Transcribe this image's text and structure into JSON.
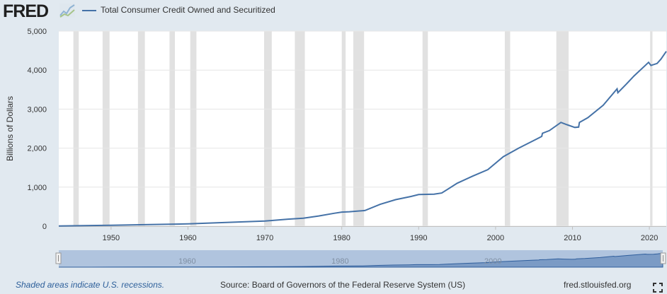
{
  "header": {
    "logo_text": "FRED",
    "logo_mark_icon": "graph-line-icon",
    "legend_label": "Total Consumer Credit Owned and Securitized"
  },
  "chart_data": {
    "type": "line",
    "title": "",
    "ylabel": "Billions of Dollars",
    "xlabel": "",
    "xlim": [
      1943.2,
      2022.2
    ],
    "ylim": [
      0,
      5000
    ],
    "yticks": [
      0,
      1000,
      2000,
      3000,
      4000,
      5000
    ],
    "ytick_labels": [
      "0",
      "1,000",
      "2,000",
      "3,000",
      "4,000",
      "5,000"
    ],
    "xticks": [
      1950,
      1960,
      1970,
      1980,
      1990,
      2000,
      2010,
      2020
    ],
    "xtick_labels": [
      "1950",
      "1960",
      "1970",
      "1980",
      "1990",
      "2000",
      "2010",
      "2020"
    ],
    "grid": "horizontal",
    "recessions": [
      [
        1945.1,
        1945.8
      ],
      [
        1948.9,
        1949.8
      ],
      [
        1953.5,
        1954.4
      ],
      [
        1957.6,
        1958.3
      ],
      [
        1960.3,
        1961.1
      ],
      [
        1969.9,
        1970.9
      ],
      [
        1973.9,
        1975.2
      ],
      [
        1980.0,
        1980.5
      ],
      [
        1981.5,
        1982.9
      ],
      [
        1990.5,
        1991.2
      ],
      [
        2001.2,
        2001.9
      ],
      [
        2007.9,
        2009.5
      ],
      [
        2020.1,
        2020.4
      ]
    ],
    "series": [
      {
        "name": "Total Consumer Credit Owned and Securitized",
        "color": "#4572a7",
        "x": [
          1943.2,
          1950,
          1955,
          1960,
          1965,
          1970,
          1973,
          1975,
          1977,
          1979,
          1980,
          1981,
          1983,
          1985,
          1987,
          1989,
          1990,
          1992,
          1993,
          1995,
          1997,
          1999,
          2001,
          2003,
          2005,
          2006,
          2006.1,
          2007,
          2008.5,
          2009.3,
          2010.3,
          2010.8,
          2010.9,
          2012,
          2014,
          2015.8,
          2015.9,
          2017,
          2018,
          2019.9,
          2020.2,
          2021,
          2021.5,
          2022.2
        ],
        "values": [
          5,
          22,
          42,
          58,
          95,
          130,
          180,
          205,
          260,
          330,
          360,
          370,
          400,
          560,
          680,
          760,
          810,
          820,
          850,
          1100,
          1280,
          1450,
          1780,
          2000,
          2200,
          2300,
          2380,
          2450,
          2660,
          2600,
          2530,
          2540,
          2660,
          2780,
          3100,
          3520,
          3420,
          3640,
          3850,
          4200,
          4120,
          4170,
          4280,
          4480
        ]
      }
    ]
  },
  "navigator": {
    "tick_labels": [
      "1960",
      "1980",
      "2000"
    ],
    "tick_years": [
      1960,
      1980,
      2000
    ],
    "range": [
      1943.2,
      2022.2
    ]
  },
  "footer": {
    "recession_note": "Shaded areas indicate U.S. recessions.",
    "source": "Source: Board of Governors of the Federal Reserve System (US)",
    "site": "fred.stlouisfed.org",
    "fullscreen_icon": "fullscreen-icon"
  }
}
